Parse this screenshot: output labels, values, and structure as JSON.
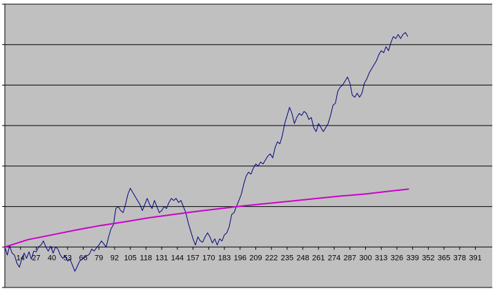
{
  "chart_data": {
    "type": "line",
    "title": "",
    "xlabel": "",
    "ylabel": "",
    "x_tick_labels": [
      "14",
      "27",
      "40",
      "53",
      "66",
      "79",
      "92",
      "105",
      "118",
      "131",
      "144",
      "157",
      "170",
      "183",
      "196",
      "209",
      "222",
      "235",
      "248",
      "261",
      "274",
      "287",
      "300",
      "313",
      "326",
      "339",
      "352",
      "365",
      "378",
      "391"
    ],
    "xlim": [
      1,
      405
    ],
    "ylim": [
      -1,
      6
    ],
    "y_tick_labels_visible": false,
    "grid": true,
    "plot_background": "#c0c0c0",
    "series": [
      {
        "color": "#000080",
        "points": [
          [
            1,
            0.0
          ],
          [
            3,
            -0.2
          ],
          [
            5,
            0.03
          ],
          [
            7,
            -0.15
          ],
          [
            9,
            -0.2
          ],
          [
            11,
            -0.4
          ],
          [
            13,
            -0.5
          ],
          [
            15,
            -0.3
          ],
          [
            17,
            -0.15
          ],
          [
            19,
            -0.28
          ],
          [
            21,
            -0.12
          ],
          [
            23,
            -0.3
          ],
          [
            25,
            -0.1
          ],
          [
            27,
            -0.12
          ],
          [
            29,
            0.0
          ],
          [
            31,
            0.05
          ],
          [
            33,
            0.15
          ],
          [
            35,
            0.0
          ],
          [
            37,
            -0.1
          ],
          [
            39,
            0.02
          ],
          [
            41,
            -0.15
          ],
          [
            43,
            0.0
          ],
          [
            45,
            -0.05
          ],
          [
            47,
            -0.2
          ],
          [
            49,
            -0.28
          ],
          [
            51,
            -0.22
          ],
          [
            53,
            -0.35
          ],
          [
            55,
            -0.3
          ],
          [
            57,
            -0.45
          ],
          [
            59,
            -0.6
          ],
          [
            61,
            -0.48
          ],
          [
            63,
            -0.35
          ],
          [
            65,
            -0.3
          ],
          [
            67,
            -0.25
          ],
          [
            69,
            -0.22
          ],
          [
            71,
            -0.18
          ],
          [
            73,
            -0.05
          ],
          [
            75,
            -0.1
          ],
          [
            77,
            -0.02
          ],
          [
            79,
            0.05
          ],
          [
            81,
            0.15
          ],
          [
            83,
            0.08
          ],
          [
            85,
            0.0
          ],
          [
            87,
            0.25
          ],
          [
            89,
            0.45
          ],
          [
            91,
            0.55
          ],
          [
            93,
            0.95
          ],
          [
            95,
            1.0
          ],
          [
            97,
            0.9
          ],
          [
            99,
            0.85
          ],
          [
            101,
            1.05
          ],
          [
            103,
            1.3
          ],
          [
            105,
            1.45
          ],
          [
            107,
            1.35
          ],
          [
            109,
            1.25
          ],
          [
            111,
            1.15
          ],
          [
            113,
            1.05
          ],
          [
            115,
            0.9
          ],
          [
            117,
            1.05
          ],
          [
            119,
            1.2
          ],
          [
            121,
            1.05
          ],
          [
            123,
            0.95
          ],
          [
            125,
            1.15
          ],
          [
            127,
            1.0
          ],
          [
            129,
            0.85
          ],
          [
            131,
            0.9
          ],
          [
            133,
            1.0
          ],
          [
            135,
            0.95
          ],
          [
            137,
            1.1
          ],
          [
            139,
            1.2
          ],
          [
            141,
            1.15
          ],
          [
            143,
            1.2
          ],
          [
            145,
            1.1
          ],
          [
            147,
            1.15
          ],
          [
            149,
            1.0
          ],
          [
            151,
            0.85
          ],
          [
            153,
            0.6
          ],
          [
            155,
            0.4
          ],
          [
            157,
            0.2
          ],
          [
            159,
            0.05
          ],
          [
            161,
            0.25
          ],
          [
            163,
            0.15
          ],
          [
            165,
            0.12
          ],
          [
            167,
            0.25
          ],
          [
            169,
            0.35
          ],
          [
            171,
            0.25
          ],
          [
            173,
            0.1
          ],
          [
            175,
            0.2
          ],
          [
            177,
            0.05
          ],
          [
            179,
            0.2
          ],
          [
            181,
            0.15
          ],
          [
            183,
            0.3
          ],
          [
            185,
            0.35
          ],
          [
            187,
            0.5
          ],
          [
            189,
            0.8
          ],
          [
            191,
            0.85
          ],
          [
            193,
            1.0
          ],
          [
            195,
            1.15
          ],
          [
            197,
            1.3
          ],
          [
            199,
            1.55
          ],
          [
            201,
            1.75
          ],
          [
            203,
            1.85
          ],
          [
            205,
            1.8
          ],
          [
            207,
            1.95
          ],
          [
            209,
            2.05
          ],
          [
            211,
            2.0
          ],
          [
            213,
            2.1
          ],
          [
            215,
            2.05
          ],
          [
            217,
            2.15
          ],
          [
            219,
            2.25
          ],
          [
            221,
            2.3
          ],
          [
            223,
            2.2
          ],
          [
            225,
            2.45
          ],
          [
            227,
            2.6
          ],
          [
            229,
            2.55
          ],
          [
            231,
            2.75
          ],
          [
            233,
            3.05
          ],
          [
            235,
            3.25
          ],
          [
            237,
            3.45
          ],
          [
            239,
            3.3
          ],
          [
            241,
            3.05
          ],
          [
            243,
            3.2
          ],
          [
            245,
            3.3
          ],
          [
            247,
            3.25
          ],
          [
            249,
            3.35
          ],
          [
            251,
            3.3
          ],
          [
            253,
            3.15
          ],
          [
            255,
            3.2
          ],
          [
            257,
            2.95
          ],
          [
            259,
            2.85
          ],
          [
            261,
            3.05
          ],
          [
            263,
            2.95
          ],
          [
            265,
            2.85
          ],
          [
            267,
            2.95
          ],
          [
            269,
            3.05
          ],
          [
            271,
            3.25
          ],
          [
            273,
            3.5
          ],
          [
            275,
            3.55
          ],
          [
            277,
            3.85
          ],
          [
            279,
            3.95
          ],
          [
            281,
            4.0
          ],
          [
            283,
            4.1
          ],
          [
            285,
            4.2
          ],
          [
            287,
            4.05
          ],
          [
            289,
            3.75
          ],
          [
            291,
            3.7
          ],
          [
            293,
            3.8
          ],
          [
            295,
            3.7
          ],
          [
            297,
            3.8
          ],
          [
            299,
            4.05
          ],
          [
            301,
            4.15
          ],
          [
            303,
            4.3
          ],
          [
            305,
            4.4
          ],
          [
            307,
            4.5
          ],
          [
            309,
            4.6
          ],
          [
            311,
            4.75
          ],
          [
            313,
            4.85
          ],
          [
            315,
            4.8
          ],
          [
            317,
            4.95
          ],
          [
            319,
            4.85
          ],
          [
            321,
            5.05
          ],
          [
            323,
            5.2
          ],
          [
            325,
            5.15
          ],
          [
            327,
            5.25
          ],
          [
            329,
            5.15
          ],
          [
            331,
            5.25
          ],
          [
            333,
            5.3
          ],
          [
            335,
            5.2
          ]
        ]
      },
      {
        "color": "#cc00cc",
        "points": [
          [
            1,
            0.0
          ],
          [
            20,
            0.18
          ],
          [
            40,
            0.3
          ],
          [
            60,
            0.42
          ],
          [
            80,
            0.53
          ],
          [
            100,
            0.62
          ],
          [
            120,
            0.72
          ],
          [
            140,
            0.8
          ],
          [
            160,
            0.88
          ],
          [
            180,
            0.95
          ],
          [
            200,
            1.02
          ],
          [
            220,
            1.08
          ],
          [
            240,
            1.14
          ],
          [
            260,
            1.2
          ],
          [
            280,
            1.26
          ],
          [
            300,
            1.31
          ],
          [
            320,
            1.38
          ],
          [
            336,
            1.43
          ]
        ]
      }
    ]
  }
}
